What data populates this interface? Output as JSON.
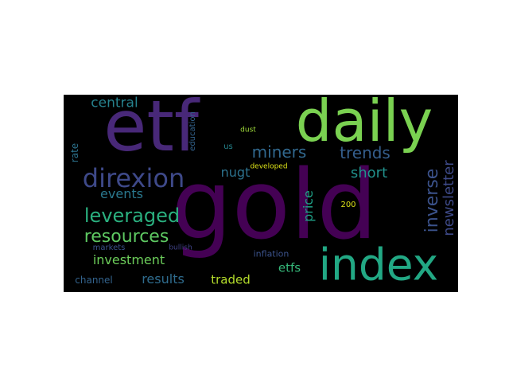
{
  "words": [
    {
      "text": "gold",
      "color": "#440154"
    },
    {
      "text": "etf",
      "color": "#482878"
    },
    {
      "text": "daily",
      "color": "#7ad151"
    },
    {
      "text": "index",
      "color": "#22a884"
    },
    {
      "text": "direxion",
      "color": "#3e4989"
    },
    {
      "text": "leveraged",
      "color": "#2ab07f"
    },
    {
      "text": "resources",
      "color": "#5ec962"
    },
    {
      "text": "miners",
      "color": "#31688e"
    },
    {
      "text": "trends",
      "color": "#355f8d"
    },
    {
      "text": "inverse",
      "color": "#3b528b"
    },
    {
      "text": "newsletter",
      "color": "#3e4a89"
    },
    {
      "text": "central",
      "color": "#26828e"
    },
    {
      "text": "short",
      "color": "#21918c"
    },
    {
      "text": "nugt",
      "color": "#2c728e"
    },
    {
      "text": "events",
      "color": "#2a788e"
    },
    {
      "text": "investment",
      "color": "#6ccd5a"
    },
    {
      "text": "results",
      "color": "#2f6c8e"
    },
    {
      "text": "price",
      "color": "#1fa187"
    },
    {
      "text": "etfs",
      "color": "#35b779"
    },
    {
      "text": "traded",
      "color": "#b5de2b"
    },
    {
      "text": "channel",
      "color": "#33638d"
    },
    {
      "text": "markets",
      "color": "#3b528b"
    },
    {
      "text": "rate",
      "color": "#2c738e"
    },
    {
      "text": "education",
      "color": "#33638d"
    },
    {
      "text": "us",
      "color": "#25858e"
    },
    {
      "text": "dust",
      "color": "#9fda3a"
    },
    {
      "text": "developed",
      "color": "#dde318"
    },
    {
      "text": "inflation",
      "color": "#3b528b"
    },
    {
      "text": "200",
      "color": "#dde318"
    },
    {
      "text": "bullish",
      "color": "#404387"
    }
  ]
}
